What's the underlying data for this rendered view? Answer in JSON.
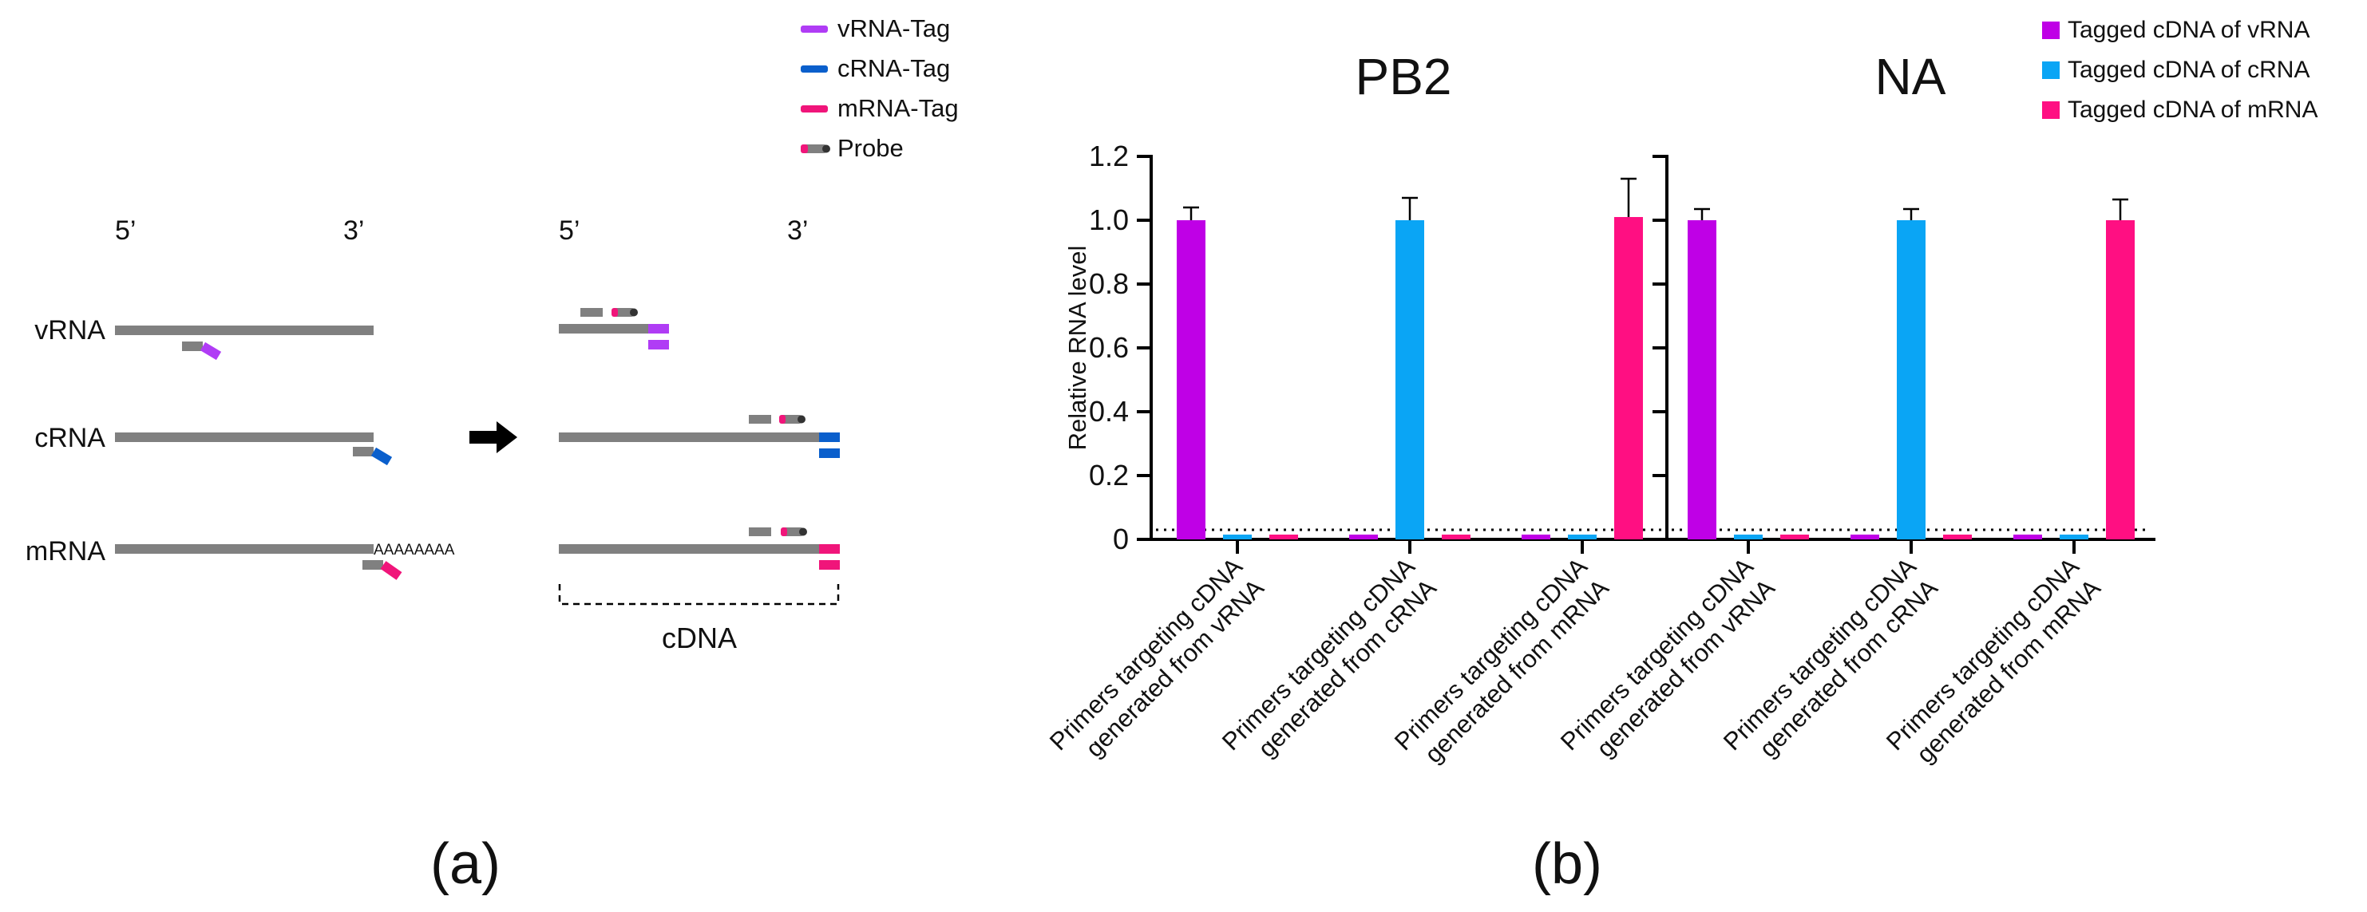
{
  "colors": {
    "vrna": "#b03cf5",
    "crna": "#0a5fcc",
    "mrna": "#f0157a",
    "gray": "#808080",
    "bar_vrna": "#bf00e6",
    "bar_crna": "#0aa5f5",
    "bar_mrna": "#ff0f82"
  },
  "panel_a": {
    "label": "(a)",
    "legend": [
      "vRNA-Tag",
      "cRNA-Tag",
      "mRNA-Tag",
      "Probe"
    ],
    "left_five": "5’",
    "left_three": "3’",
    "right_five": "5’",
    "right_three": "3’",
    "rows": [
      "vRNA",
      "cRNA",
      "mRNA"
    ],
    "polya": "AAAAAAAA",
    "cdna_label": "cDNA",
    "arrow": "right-arrow-icon"
  },
  "panel_b": {
    "label": "(b)"
  },
  "chart_data": [
    {
      "type": "bar",
      "title": "PB2",
      "ylabel": "Relative RNA level",
      "ylim": [
        0,
        1.2
      ],
      "yticks": [
        "0",
        "0.2",
        "0.4",
        "0.6",
        "0.8",
        "1.0",
        "1.2"
      ],
      "threshold": 0.03,
      "categories": [
        "Primers targeting cDNA generated from vRNA",
        "Primers targeting cDNA generated from cRNA",
        "Primers targeting cDNA generated from mRNA"
      ],
      "category_lines": [
        [
          "Primers targeting cDNA",
          "generated from vRNA"
        ],
        [
          "Primers targeting cDNA",
          "generated from cRNA"
        ],
        [
          "Primers targeting cDNA",
          "generated from mRNA"
        ]
      ],
      "series": [
        {
          "name": "Tagged cDNA of vRNA",
          "values": [
            1.0,
            0.01,
            0.01
          ],
          "errors": [
            0.04,
            0,
            0
          ]
        },
        {
          "name": "Tagged cDNA of cRNA",
          "values": [
            0.01,
            1.0,
            0.01
          ],
          "errors": [
            0,
            0.07,
            0
          ]
        },
        {
          "name": "Tagged cDNA of mRNA",
          "values": [
            0.01,
            0.01,
            1.01
          ],
          "errors": [
            0,
            0,
            0.12
          ]
        }
      ]
    },
    {
      "type": "bar",
      "title": "NA",
      "ylabel": "",
      "ylim": [
        0,
        1.2
      ],
      "yticks": [
        "0",
        "0.2",
        "0.4",
        "0.6",
        "0.8",
        "1.0",
        "1.2"
      ],
      "threshold": 0.03,
      "categories": [
        "Primers targeting cDNA generated from vRNA",
        "Primers targeting cDNA generated from cRNA",
        "Primers targeting cDNA generated from mRNA"
      ],
      "category_lines": [
        [
          "Primers targeting cDNA",
          "generated from vRNA"
        ],
        [
          "Primers targeting cDNA",
          "generated from cRNA"
        ],
        [
          "Primers targeting cDNA",
          "generated from mRNA"
        ]
      ],
      "series": [
        {
          "name": "Tagged cDNA of vRNA",
          "values": [
            1.0,
            0.01,
            0.01
          ],
          "errors": [
            0.035,
            0,
            0
          ]
        },
        {
          "name": "Tagged cDNA of cRNA",
          "values": [
            0.01,
            1.0,
            0.01
          ],
          "errors": [
            0,
            0.035,
            0
          ]
        },
        {
          "name": "Tagged cDNA of mRNA",
          "values": [
            0.01,
            0.01,
            1.0
          ],
          "errors": [
            0,
            0,
            0.065
          ]
        }
      ]
    }
  ],
  "legend_b": [
    "Tagged cDNA of vRNA",
    "Tagged cDNA of cRNA",
    "Tagged cDNA of mRNA"
  ]
}
